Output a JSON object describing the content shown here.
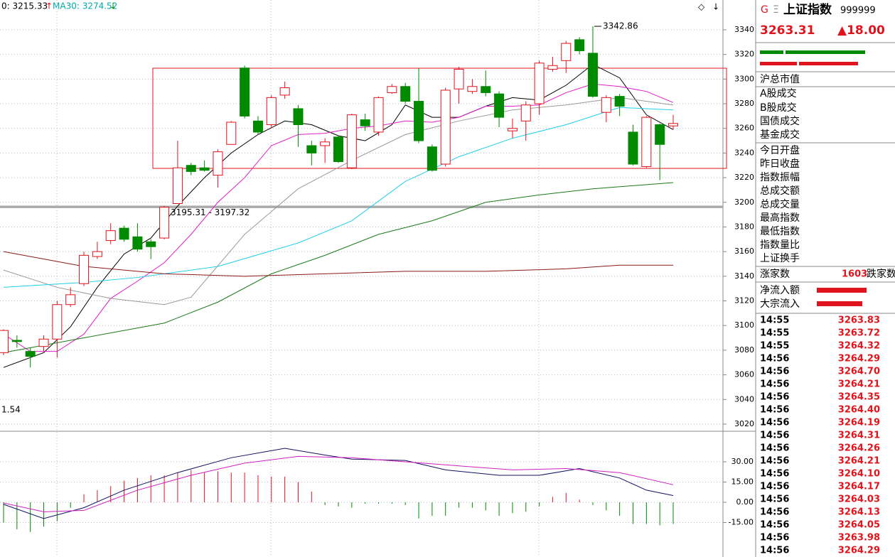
{
  "header": {
    "legend": [
      "0: 3215.33",
      "MA30: 3274.52"
    ]
  },
  "chart_data": [
    {
      "type": "candlestick",
      "ylim": [
        3014.2,
        3364.2
      ],
      "yticks": [
        3020,
        3040,
        3060,
        3080,
        3100,
        3120,
        3140,
        3160,
        3180,
        3200,
        3220,
        3240,
        3260,
        3280,
        3300,
        3320,
        3340
      ],
      "open": [
        3078,
        3088,
        3079,
        3083,
        3089,
        3117,
        3134,
        3156,
        3169,
        3179,
        3172,
        3168,
        3171,
        3199,
        3230,
        3228,
        3222,
        3247,
        3309,
        3266,
        3263,
        3287,
        3276,
        3246,
        3246,
        3253,
        3228,
        3267,
        3257,
        3289,
        3294,
        3282,
        3245,
        3231,
        3292,
        3290,
        3294,
        3288,
        3258,
        3266,
        3280,
        3308,
        3315,
        3332,
        3321,
        3273,
        3286,
        3257,
        3229,
        3263,
        3262
      ],
      "close": [
        3096,
        3087,
        3075,
        3089,
        3117,
        3125,
        3157,
        3160,
        3177,
        3170,
        3162,
        3164,
        3196,
        3228,
        3225,
        3226,
        3241,
        3265,
        3270,
        3257,
        3285,
        3293,
        3263,
        3240,
        3249,
        3233,
        3271,
        3262,
        3285,
        3294,
        3282,
        3250,
        3226,
        3291,
        3308,
        3294,
        3289,
        3269,
        3260,
        3279,
        3313,
        3311,
        3329,
        3323,
        3286,
        3285,
        3278,
        3231,
        3269,
        3247,
        3264
      ],
      "high": [
        3097,
        3092,
        3082,
        3092,
        3120,
        3131,
        3160,
        3168,
        3183,
        3181,
        3183,
        3170,
        3197,
        3250,
        3232,
        3234,
        3243,
        3266,
        3311,
        3270,
        3287,
        3298,
        3279,
        3250,
        3252,
        3254,
        3272,
        3272,
        3286,
        3296,
        3297,
        3309,
        3247,
        3293,
        3310,
        3300,
        3307,
        3290,
        3268,
        3282,
        3315,
        3318,
        3331,
        3334,
        3342.86,
        3287,
        3288,
        3263,
        3270,
        3264,
        3271
      ],
      "low": [
        3076,
        3082,
        3066,
        3079,
        3074,
        3115,
        3132,
        3154,
        3166,
        3168,
        3160,
        3154,
        3170,
        3199,
        3222,
        3225,
        3212,
        3247,
        3268,
        3255,
        3260,
        3284,
        3245,
        3230,
        3232,
        3232,
        3227,
        3258,
        3254,
        3288,
        3280,
        3248,
        3225,
        3229,
        3280,
        3288,
        3286,
        3261,
        3252,
        3250,
        3271,
        3306,
        3305,
        3320,
        3285,
        3265,
        3270,
        3230,
        3228,
        3218,
        3259
      ],
      "up_color": "#e0141c",
      "down_color": "#008a00",
      "max_label": "3342.86",
      "band": {
        "text": "3195.31 - 3197.32",
        "low": 3195.31,
        "high": 3197.32
      },
      "note": "1.54",
      "series": [
        {
          "color": "#000000",
          "x": [
            0,
            3,
            5,
            7,
            9,
            11,
            13,
            15,
            17,
            19,
            21,
            23,
            25,
            27,
            29,
            30,
            32,
            34,
            36,
            38,
            40,
            42,
            44,
            46,
            48,
            50
          ],
          "values": [
            3066,
            3078,
            3099,
            3131,
            3158,
            3171,
            3197,
            3220,
            3240,
            3255,
            3266,
            3263,
            3254,
            3250,
            3263,
            3279,
            3269,
            3269,
            3278,
            3285,
            3283,
            3295,
            3312,
            3301,
            3271,
            3259
          ]
        },
        {
          "color": "#e020c8",
          "x": [
            0,
            2,
            4,
            6,
            8,
            10,
            12,
            14,
            16,
            18,
            20,
            22,
            24,
            26,
            28,
            30,
            32,
            34,
            36,
            38,
            40,
            42,
            44,
            46,
            48,
            50
          ],
          "values": [
            3093,
            3079,
            3079,
            3093,
            3122,
            3136,
            3151,
            3174,
            3200,
            3220,
            3246,
            3255,
            3256,
            3260,
            3262,
            3266,
            3265,
            3269,
            3278,
            3278,
            3279,
            3289,
            3296,
            3294,
            3290,
            3281
          ]
        },
        {
          "color": "#999999",
          "x": [
            0,
            4,
            8,
            12,
            14,
            18,
            22,
            26,
            30,
            34,
            38,
            42,
            46,
            50
          ],
          "values": [
            3145,
            3131,
            3122,
            3117,
            3123,
            3174,
            3211,
            3234,
            3255,
            3266,
            3275,
            3279,
            3285,
            3279
          ]
        },
        {
          "color": "#20d0e8",
          "x": [
            0,
            6,
            10,
            16,
            22,
            26,
            30,
            34,
            38,
            42,
            46,
            50
          ],
          "values": [
            3131,
            3135,
            3139,
            3148,
            3167,
            3185,
            3217,
            3237,
            3252,
            3263,
            3277,
            3275
          ]
        },
        {
          "color": "#1a7a1a",
          "x": [
            0,
            6,
            12,
            16,
            20,
            24,
            28,
            32,
            36,
            40,
            44,
            50
          ],
          "values": [
            3078,
            3090,
            3102,
            3119,
            3142,
            3157,
            3174,
            3185,
            3200,
            3206,
            3211,
            3216
          ]
        },
        {
          "color": "#8b1a1a",
          "x": [
            0,
            6,
            12,
            18,
            24,
            30,
            36,
            42,
            46,
            50
          ],
          "values": [
            3160,
            3148,
            3142,
            3140,
            3142,
            3144,
            3144,
            3146,
            3149,
            3149
          ]
        }
      ]
    },
    {
      "type": "macd",
      "ylim": [
        -40.5,
        52.1
      ],
      "yticks": [
        {
          "value": 30,
          "label": "30.00"
        },
        {
          "value": 15,
          "label": "15.00"
        },
        {
          "value": 0,
          "label": "0.00"
        },
        {
          "value": -15,
          "label": "-15.00"
        }
      ],
      "histogram": [
        -15,
        -20,
        -22,
        -18,
        -14,
        -4,
        6,
        9,
        12,
        16,
        18,
        20,
        20,
        22,
        24,
        22,
        23,
        22,
        22,
        20,
        19,
        19,
        15,
        8,
        -2,
        -3,
        -4,
        -1,
        -1,
        -1,
        -2,
        -12,
        -10,
        -10,
        -4,
        -4,
        -6,
        -10,
        -8,
        -7,
        -3,
        4,
        7,
        2,
        -2,
        -6,
        -10,
        -16,
        -16,
        -17,
        -16
      ],
      "up_color": "#e0141c",
      "down_color": "#008a00",
      "series": [
        {
          "color": "#101060",
          "x": [
            0,
            3,
            6,
            9,
            13,
            17,
            21,
            24,
            26,
            30,
            33,
            37,
            40,
            43,
            46,
            48,
            50
          ],
          "values": [
            -1.5,
            -12,
            -4,
            9,
            22,
            33,
            40,
            35,
            32,
            31,
            24,
            20,
            20,
            25,
            18,
            9,
            5
          ]
        },
        {
          "color": "#d020c0",
          "x": [
            0,
            3,
            6,
            10,
            14,
            18,
            22,
            26,
            30,
            34,
            38,
            42,
            46,
            50
          ],
          "values": [
            -0.5,
            -7,
            -6,
            9,
            20,
            29,
            34,
            33,
            30,
            27,
            24,
            25,
            22,
            13
          ]
        }
      ]
    }
  ],
  "quote_panel": {
    "marker": "G",
    "name": "上证指数",
    "code": "999999",
    "price": "3263.31",
    "change": "▲18.00",
    "fields": [
      "沪总市值",
      "A股成交",
      "B股成交",
      "国债成交",
      "基金成交",
      "今日开盘",
      "昨日收盘",
      "指数振幅",
      "总成交额",
      "总成交量",
      "最高指数",
      "最低指数",
      "指数量比",
      "上证换手"
    ],
    "advance_label": "涨家数",
    "advance_count": "1603",
    "decline_label": "跌家数",
    "flows": [
      "净流入额",
      "大宗流入"
    ],
    "ticks": [
      {
        "time": "14:55",
        "price": "3263.83"
      },
      {
        "time": "14:55",
        "price": "3263.72"
      },
      {
        "time": "14:55",
        "price": "3264.32"
      },
      {
        "time": "14:56",
        "price": "3264.29"
      },
      {
        "time": "14:56",
        "price": "3264.70"
      },
      {
        "time": "14:56",
        "price": "3264.21"
      },
      {
        "time": "14:56",
        "price": "3264.35"
      },
      {
        "time": "14:56",
        "price": "3264.40"
      },
      {
        "time": "14:56",
        "price": "3264.19"
      },
      {
        "time": "14:56",
        "price": "3264.31"
      },
      {
        "time": "14:56",
        "price": "3264.26"
      },
      {
        "time": "14:56",
        "price": "3264.21"
      },
      {
        "time": "14:56",
        "price": "3264.10"
      },
      {
        "time": "14:56",
        "price": "3264.17"
      },
      {
        "time": "14:56",
        "price": "3264.03"
      },
      {
        "time": "14:56",
        "price": "3264.13"
      },
      {
        "time": "14:56",
        "price": "3264.05"
      },
      {
        "time": "14:56",
        "price": "3263.98"
      },
      {
        "time": "14:56",
        "price": "3264.29"
      }
    ]
  }
}
